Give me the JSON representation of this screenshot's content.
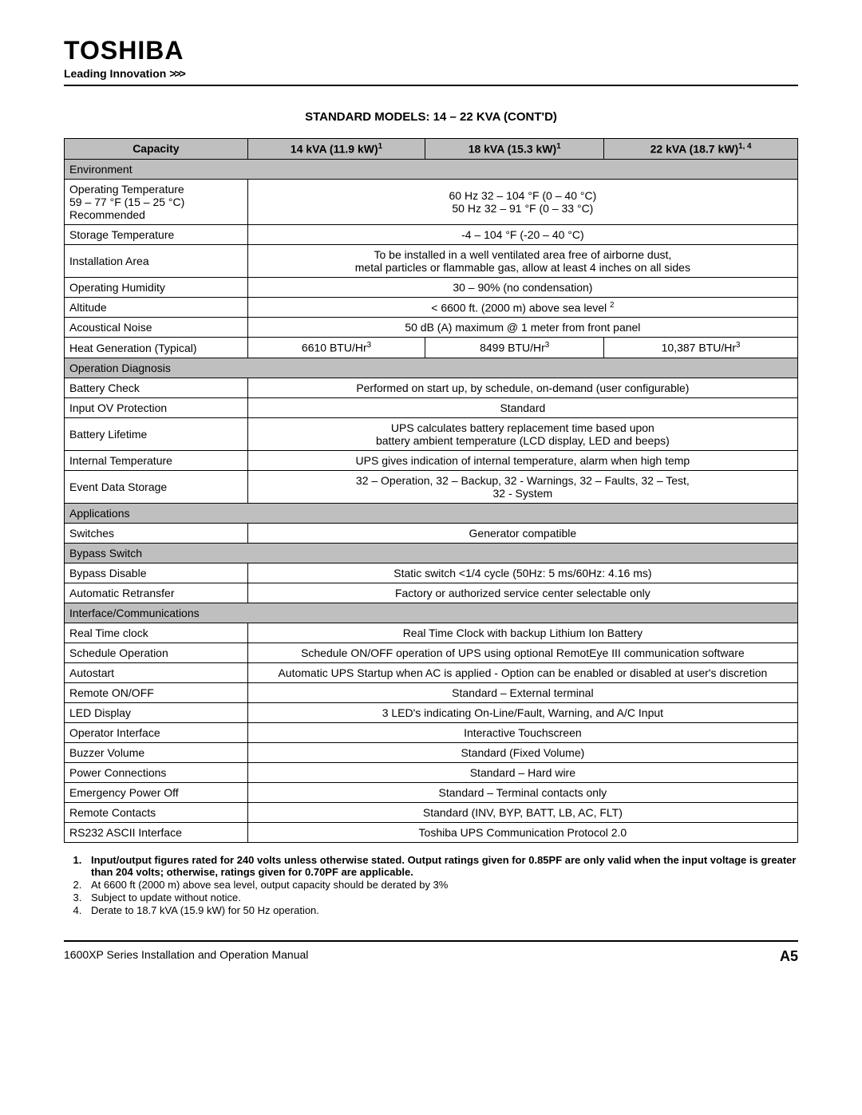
{
  "brand": "TOSHIBA",
  "tagline": "Leading Innovation",
  "chevrons": ">>>",
  "title": "STANDARD MODELS: 14 – 22 KVA (CONT'D)",
  "headers": {
    "c0": "Capacity",
    "c1_main": "14 kVA (11.9 kW)",
    "c1_sup": "1",
    "c2_main": "18 kVA (15.3 kW)",
    "c2_sup": "1",
    "c3_main": "22 kVA (18.7 kW)",
    "c3_sup": "1, 4"
  },
  "sections": {
    "env": "Environment",
    "diag": "Operation Diagnosis",
    "apps": "Applications",
    "bypass": "Bypass Switch",
    "comms": "Interface/Communications"
  },
  "rows": {
    "op_temp_label": "Operating Temperature\n59 – 77 °F (15 – 25 °C)\nRecommended",
    "op_temp_val": "60 Hz 32 – 104 °F (0 – 40 °C)\n50 Hz  32 – 91 °F (0 – 33 °C)",
    "storage_label": "Storage Temperature",
    "storage_val": "-4 – 104 °F (-20 – 40 °C)",
    "install_label": "Installation Area",
    "install_val": "To be installed in a well ventilated area free of airborne dust,\nmetal particles or flammable gas, allow at least 4 inches on all sides",
    "humidity_label": "Operating Humidity",
    "humidity_val": "30 – 90% (no condensation)",
    "altitude_label": "Altitude",
    "altitude_val_main": "<  6600 ft. (2000 m) above sea level ",
    "altitude_val_sup": "2",
    "noise_label": "Acoustical Noise",
    "noise_val": "50 dB (A) maximum @ 1 meter from front panel",
    "heat_label": "Heat Generation (Typical)",
    "heat_14_main": "6610 BTU/Hr",
    "heat_18_main": "8499 BTU/Hr",
    "heat_22_main": "10,387 BTU/Hr",
    "heat_sup": "3",
    "batt_check_label": "Battery Check",
    "batt_check_val": "Performed on start up, by schedule, on-demand (user configurable)",
    "ov_label": "Input OV Protection",
    "ov_val": "Standard",
    "batt_life_label": "Battery Lifetime",
    "batt_life_val": "UPS calculates battery replacement time based upon\nbattery ambient temperature (LCD display, LED and beeps)",
    "int_temp_label": "Internal Temperature",
    "int_temp_val": "UPS gives indication of internal temperature, alarm when high temp",
    "event_label": "Event Data Storage",
    "event_val": "32 – Operation, 32 – Backup, 32 - Warnings, 32 – Faults, 32 – Test,\n32 - System",
    "switches_label": "Switches",
    "switches_val": "Generator compatible",
    "bypass_dis_label": "Bypass Disable",
    "bypass_dis_val": "Static switch <1/4 cycle (50Hz: 5 ms/60Hz: 4.16 ms)",
    "auto_ret_label": "Automatic Retransfer",
    "auto_ret_val": "Factory or authorized service center selectable only",
    "rtc_label": "Real Time clock",
    "rtc_val": "Real Time Clock with backup Lithium Ion Battery",
    "sched_label": "Schedule Operation",
    "sched_val": "Schedule ON/OFF operation of UPS using optional RemotEye III communication software",
    "autostart_label": "Autostart",
    "autostart_val": "Automatic UPS Startup when AC is applied - Option can be enabled or disabled at user's discretion",
    "remote_label": "Remote ON/OFF",
    "remote_val": "Standard – External terminal",
    "led_label": "LED Display",
    "led_val": "3 LED's indicating On-Line/Fault, Warning, and A/C Input",
    "op_if_label": "Operator Interface",
    "op_if_val": "Interactive Touchscreen",
    "buzzer_label": "Buzzer Volume",
    "buzzer_val": "Standard  (Fixed Volume)",
    "power_label": "Power Connections",
    "power_val": "Standard – Hard wire",
    "epo_label": "Emergency Power Off",
    "epo_val": "Standard – Terminal contacts only",
    "rc_label": "Remote Contacts",
    "rc_val": "Standard (INV, BYP, BATT, LB, AC, FLT)",
    "rs232_label": "RS232 ASCII Interface",
    "rs232_val": "Toshiba UPS Communication Protocol 2.0"
  },
  "footnotes": {
    "n1": "Input/output figures rated for 240 volts unless otherwise stated.  Output ratings given for 0.85PF are only valid when the input voltage is greater than 204 volts; otherwise, ratings given for 0.70PF are applicable.",
    "n2": "At 6600 ft (2000 m) above sea level, output capacity should be derated by 3%",
    "n3": "Subject to update without notice.",
    "n4": "Derate to 18.7 kVA (15.9 kW) for 50 Hz operation."
  },
  "footer": {
    "manual": "1600XP Series Installation and Operation Manual",
    "page": "A5"
  }
}
